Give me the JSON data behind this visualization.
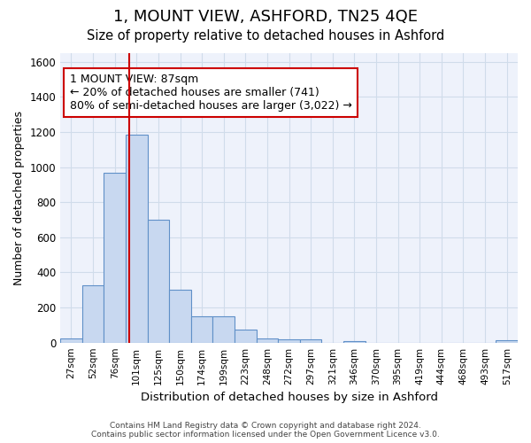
{
  "title": "1, MOUNT VIEW, ASHFORD, TN25 4QE",
  "subtitle": "Size of property relative to detached houses in Ashford",
  "xlabel": "Distribution of detached houses by size in Ashford",
  "ylabel": "Number of detached properties",
  "categories": [
    "27sqm",
    "52sqm",
    "76sqm",
    "101sqm",
    "125sqm",
    "150sqm",
    "174sqm",
    "199sqm",
    "223sqm",
    "248sqm",
    "272sqm",
    "297sqm",
    "321sqm",
    "346sqm",
    "370sqm",
    "395sqm",
    "419sqm",
    "444sqm",
    "468sqm",
    "493sqm",
    "517sqm"
  ],
  "values": [
    25,
    325,
    970,
    1185,
    700,
    300,
    150,
    150,
    75,
    25,
    20,
    20,
    0,
    10,
    0,
    0,
    0,
    0,
    0,
    0,
    15
  ],
  "bar_color": "#c8d8f0",
  "bar_edge_color": "#6090c8",
  "grid_color": "#d0dcea",
  "background_color": "#ffffff",
  "ax_background_color": "#eef2fb",
  "red_line_x": 2.65,
  "annotation_text": "1 MOUNT VIEW: 87sqm\n← 20% of detached houses are smaller (741)\n80% of semi-detached houses are larger (3,022) →",
  "annotation_box_color": "white",
  "annotation_box_edge_color": "#cc0000",
  "ylim": [
    0,
    1650
  ],
  "yticks": [
    0,
    200,
    400,
    600,
    800,
    1000,
    1200,
    1400,
    1600
  ],
  "footer_text": "Contains HM Land Registry data © Crown copyright and database right 2024.\nContains public sector information licensed under the Open Government Licence v3.0.",
  "title_fontsize": 13,
  "subtitle_fontsize": 10.5,
  "ylabel_fontsize": 9,
  "xlabel_fontsize": 9.5,
  "annotation_fontsize": 9
}
